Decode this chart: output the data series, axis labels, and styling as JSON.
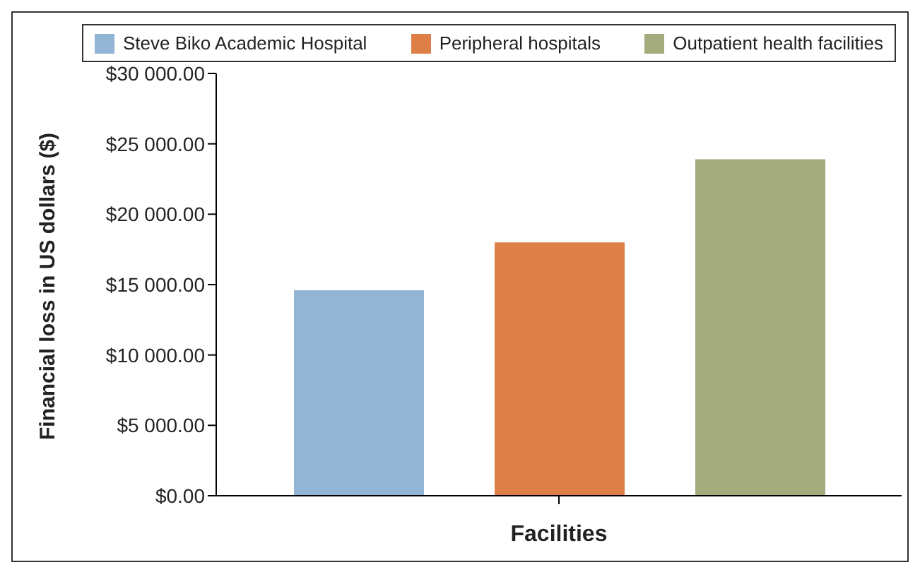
{
  "chart_data": {
    "type": "bar",
    "xlabel": "Facilities",
    "ylabel": "Financial loss in US dollars ($)",
    "categories": [
      null
    ],
    "series": [
      {
        "name": "Steve Biko Academic Hospital",
        "color": "#93b5d5",
        "values": [
          14600
        ]
      },
      {
        "name": "Peripheral hospitals",
        "color": "#de7f47",
        "values": [
          18000
        ]
      },
      {
        "name": "Outpatient health facilities",
        "color": "#a3aa7c",
        "values": [
          23900
        ]
      }
    ],
    "ylim": [
      0,
      30000
    ],
    "yticks": [
      {
        "value": 0,
        "label": "$0.00"
      },
      {
        "value": 5000,
        "label": "$5 000.00"
      },
      {
        "value": 10000,
        "label": "$10 000.00"
      },
      {
        "value": 15000,
        "label": "$15 000.00"
      },
      {
        "value": 20000,
        "label": "$20 000.00"
      },
      {
        "value": 25000,
        "label": "$25 000.00"
      },
      {
        "value": 30000,
        "label": "$30 000.00"
      }
    ],
    "grid": false,
    "legend": "top"
  }
}
